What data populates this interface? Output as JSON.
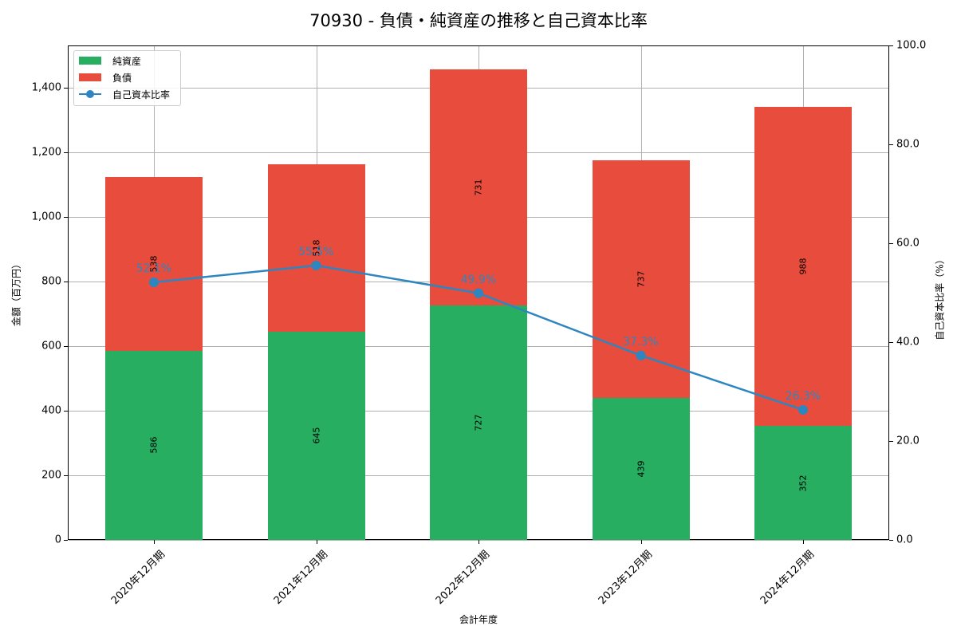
{
  "title": "70930 - 負債・純資産の推移と自己資本比率",
  "colors": {
    "net_assets": "#27ae60",
    "liabilities": "#e74c3c",
    "equity_ratio": "#2e86c1"
  },
  "legend": {
    "net_assets": "純資産",
    "liabilities": "負債",
    "equity_ratio": "自己資本比率"
  },
  "axes": {
    "xlabel": "会計年度",
    "ylabel_left": "金額（百万円）",
    "ylabel_right": "自己資本比率（%）",
    "left_ticks": [
      "0",
      "200",
      "400",
      "600",
      "800",
      "1,000",
      "1,200",
      "1,400"
    ],
    "right_ticks": [
      "0.0",
      "20.0",
      "40.0",
      "60.0",
      "80.0",
      "100.0"
    ]
  },
  "chart_data": {
    "type": "bar",
    "stacked": true,
    "title": "70930 - 負債・純資産の推移と自己資本比率",
    "xlabel": "会計年度",
    "ylabel": "金額（百万円）",
    "ylabel_right": "自己資本比率（%）",
    "categories": [
      "2020年12月期",
      "2021年12月期",
      "2022年12月期",
      "2023年12月期",
      "2024年12月期"
    ],
    "series": [
      {
        "name": "純資産",
        "type": "bar",
        "axis": "left",
        "values": [
          586,
          645,
          727,
          439,
          352
        ]
      },
      {
        "name": "負債",
        "type": "bar",
        "axis": "left",
        "values": [
          538,
          518,
          731,
          737,
          988
        ]
      },
      {
        "name": "自己資本比率",
        "type": "line",
        "axis": "right",
        "values": [
          52.1,
          55.5,
          49.9,
          37.3,
          26.3
        ],
        "labels": [
          "52.1%",
          "55.5%",
          "49.9%",
          "37.3%",
          "26.3%"
        ]
      }
    ],
    "ylim": [
      0,
      1531
    ],
    "ylim_right": [
      0,
      100
    ],
    "grid": true,
    "legend_position": "upper left"
  }
}
